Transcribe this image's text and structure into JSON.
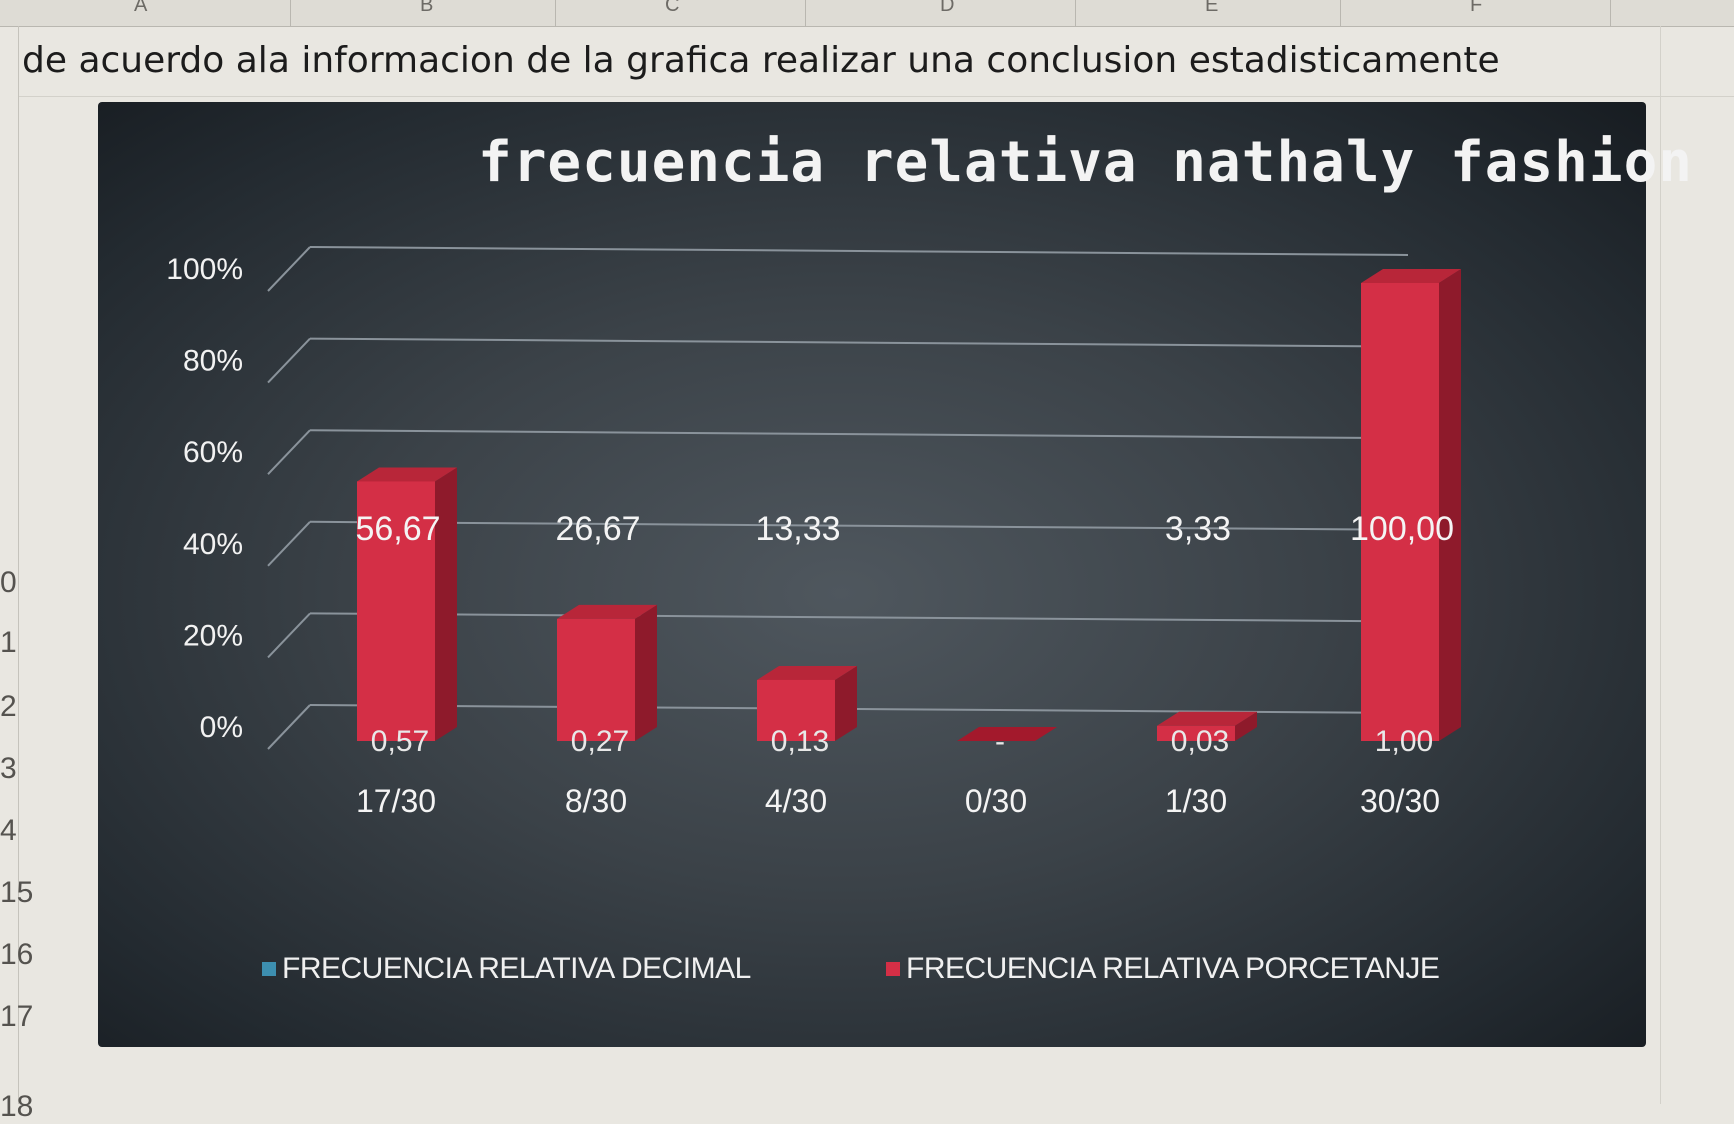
{
  "spreadsheet": {
    "column_letters": [
      "A",
      "B",
      "C",
      "D",
      "E",
      "F"
    ],
    "row_numbers": [
      "0",
      "1",
      "2",
      "3",
      "4",
      "15",
      "16",
      "17",
      "18"
    ],
    "instruction_text": "de acuerdo ala informacion de la grafica realizar una conclusion estadisticamente"
  },
  "chart_data": {
    "type": "bar",
    "title": "frecuencia relativa nathaly fashion",
    "categories": [
      "17/30",
      "8/30",
      "4/30",
      "0/30",
      "1/30",
      "30/30"
    ],
    "series": [
      {
        "name": "FRECUENCIA RELATIVA DECIMAL",
        "values": [
          0.57,
          0.27,
          0.13,
          0,
          0.03,
          1.0
        ],
        "labels": [
          "0,57",
          "0,27",
          "0,13",
          "-",
          "0,03",
          "1,00"
        ],
        "color": "#3d8fb0"
      },
      {
        "name": "FRECUENCIA RELATIVA PORCETANJE",
        "values": [
          56.67,
          26.67,
          13.33,
          0,
          3.33,
          100.0
        ],
        "labels": [
          "56,67",
          "26,67",
          "13,33",
          "",
          "3,33",
          "100,00"
        ],
        "color": "#d42f46"
      }
    ],
    "y_ticks": [
      "0%",
      "20%",
      "40%",
      "60%",
      "80%",
      "100%"
    ],
    "grid": true,
    "legend_position": "bottom",
    "background": "#2f363c"
  }
}
